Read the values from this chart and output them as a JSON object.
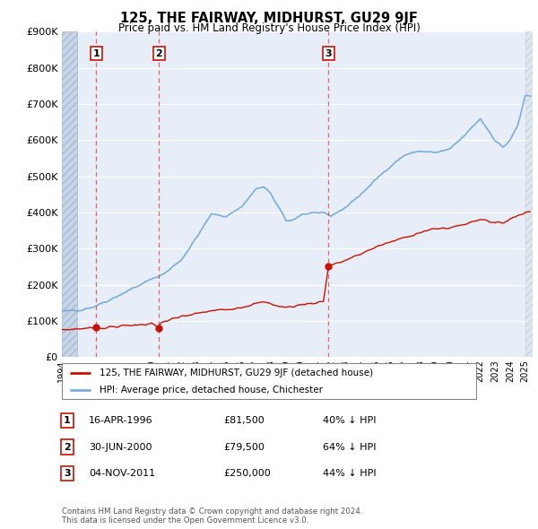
{
  "title": "125, THE FAIRWAY, MIDHURST, GU29 9JF",
  "subtitle": "Price paid vs. HM Land Registry's House Price Index (HPI)",
  "hpi_line_color": "#7aaddc",
  "price_line_color": "#cc1100",
  "background_color": "#e8eef8",
  "ylim": [
    0,
    900000
  ],
  "yticks": [
    0,
    100000,
    200000,
    300000,
    400000,
    500000,
    600000,
    700000,
    800000,
    900000
  ],
  "xlim_start": 1994.0,
  "xlim_end": 2025.5,
  "purchases": [
    {
      "year": 1996.29,
      "price": 81500,
      "label": "1"
    },
    {
      "year": 2000.49,
      "price": 79500,
      "label": "2"
    },
    {
      "year": 2011.84,
      "price": 250000,
      "label": "3"
    }
  ],
  "legend_entries": [
    "125, THE FAIRWAY, MIDHURST, GU29 9JF (detached house)",
    "HPI: Average price, detached house, Chichester"
  ],
  "table_rows": [
    {
      "num": "1",
      "date": "16-APR-1996",
      "price": "£81,500",
      "pct": "40% ↓ HPI"
    },
    {
      "num": "2",
      "date": "30-JUN-2000",
      "price": "£79,500",
      "pct": "64% ↓ HPI"
    },
    {
      "num": "3",
      "date": "04-NOV-2011",
      "price": "£250,000",
      "pct": "44% ↓ HPI"
    }
  ],
  "footnote": "Contains HM Land Registry data © Crown copyright and database right 2024.\nThis data is licensed under the Open Government Licence v3.0."
}
